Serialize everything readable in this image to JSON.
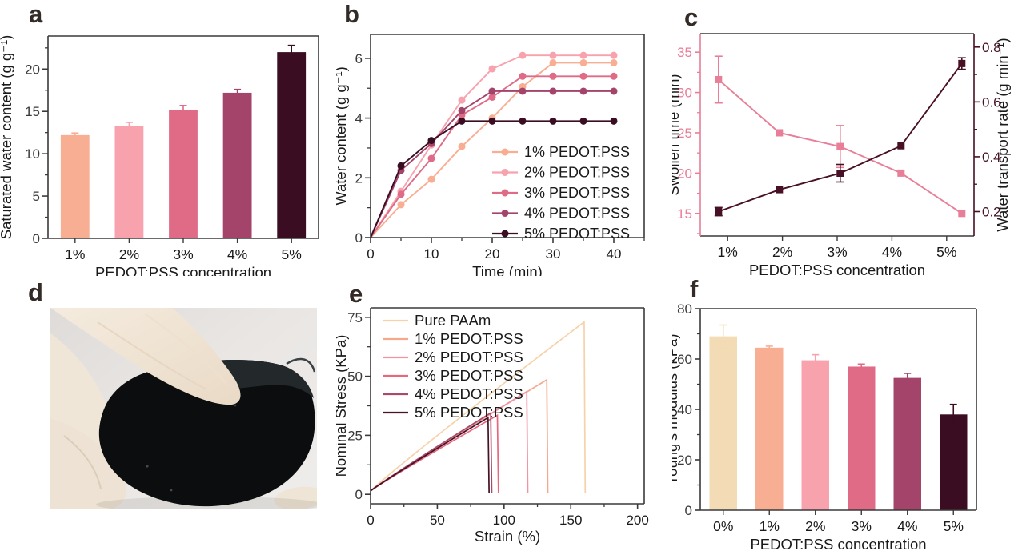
{
  "figure": {
    "background": "#ffffff",
    "panels": [
      {
        "id": "a",
        "label": "a"
      },
      {
        "id": "b",
        "label": "b"
      },
      {
        "id": "c",
        "label": "c"
      },
      {
        "id": "d",
        "label": "d"
      },
      {
        "id": "e",
        "label": "e"
      },
      {
        "id": "f",
        "label": "f"
      }
    ]
  },
  "photo": {
    "alt": "White-gloved hand holding and bending a flexible black PEDOT:PSS hydrogel disc"
  },
  "chart_data": [
    {
      "panel": "a",
      "type": "bar",
      "categories": [
        "1%",
        "2%",
        "3%",
        "4%",
        "5%"
      ],
      "values": [
        12.2,
        13.3,
        15.2,
        17.2,
        22.0
      ],
      "errors": [
        0.25,
        0.4,
        0.5,
        0.4,
        0.8
      ],
      "bar_colors": [
        "#F8AE93",
        "#F8A2AE",
        "#DF6B87",
        "#A4446A",
        "#3A0D22"
      ],
      "xlabel": "PEDOT:PSS concentration",
      "ylabel": "Saturated water content (g g⁻¹)",
      "ylim": [
        0,
        23.9
      ],
      "yticks": [
        0,
        5,
        10,
        15,
        20
      ],
      "grid": false
    },
    {
      "panel": "b",
      "type": "line",
      "x": [
        0,
        5,
        10,
        15,
        20,
        25,
        30,
        35,
        40
      ],
      "series": [
        {
          "name": "1% PEDOT:PSS",
          "color": "#F8AE93",
          "values": [
            0,
            1.1,
            1.95,
            3.05,
            4.0,
            5.05,
            5.85,
            5.85,
            5.85
          ]
        },
        {
          "name": "2% PEDOT:PSS",
          "color": "#F8A2AE",
          "values": [
            0,
            1.55,
            3.1,
            4.6,
            5.65,
            6.1,
            6.1,
            6.1,
            6.1
          ]
        },
        {
          "name": "3% PEDOT:PSS",
          "color": "#DF6B87",
          "values": [
            0,
            1.45,
            2.65,
            4.1,
            4.7,
            5.4,
            5.4,
            5.4,
            5.4
          ]
        },
        {
          "name": "4% PEDOT:PSS",
          "color": "#A4446A",
          "values": [
            0,
            2.25,
            3.15,
            4.25,
            4.9,
            4.9,
            4.9,
            4.9,
            4.9
          ]
        },
        {
          "name": "5% PEDOT:PSS",
          "color": "#3A0D22",
          "values": [
            0,
            2.4,
            3.25,
            3.9,
            3.9,
            3.9,
            3.9,
            3.9,
            3.9
          ]
        }
      ],
      "xlabel": "Time (min)",
      "ylabel": "Water content (g g⁻¹)",
      "xlim": [
        0,
        45
      ],
      "ylim": [
        0,
        6.8
      ],
      "xticks": [
        0,
        10,
        20,
        30,
        40
      ],
      "yticks": [
        0,
        2,
        4,
        6
      ],
      "legend_position": "lower-right",
      "markers": true,
      "grid": false
    },
    {
      "panel": "c",
      "type": "dual-line",
      "categories": [
        "1%",
        "2%",
        "3%",
        "4%",
        "5%"
      ],
      "left": {
        "label": "Swollen time (min)",
        "color": "#E87E97",
        "values": [
          31.6,
          25.0,
          23.3,
          20.0,
          15.0
        ],
        "errors": [
          2.9,
          0,
          2.6,
          0,
          0
        ],
        "ticks": [
          15,
          20,
          25,
          30,
          35
        ],
        "lim": [
          12.2,
          37.3
        ]
      },
      "right": {
        "label": "Water transport rate (g min⁻¹)",
        "color": "#471024",
        "values": [
          0.2,
          0.28,
          0.34,
          0.44,
          0.74
        ],
        "errors": [
          0.015,
          0,
          0.032,
          0,
          0.021
        ],
        "ticks": [
          0.2,
          0.4,
          0.6,
          0.8
        ],
        "lim": [
          0.111,
          0.849
        ]
      },
      "xlabel": "PEDOT:PSS concentration",
      "xlim": [
        0.7,
        5.2
      ],
      "marker": "square",
      "grid": false
    },
    {
      "panel": "e",
      "type": "stress-strain",
      "series": [
        {
          "name": "Pure PAAm",
          "color": "#F7D2A9",
          "fracture_strain": 160,
          "fracture_stress": 73.0
        },
        {
          "name": "1% PEDOT:PSS",
          "color": "#F6A78D",
          "fracture_strain": 132,
          "fracture_stress": 48.5
        },
        {
          "name": "2% PEDOT:PSS",
          "color": "#F293A0",
          "fracture_strain": 117,
          "fracture_stress": 43.5
        },
        {
          "name": "3% PEDOT:PSS",
          "color": "#E7687E",
          "fracture_strain": 95,
          "fracture_stress": 33.5
        },
        {
          "name": "4% PEDOT:PSS",
          "color": "#A74B67",
          "fracture_strain": 90,
          "fracture_stress": 34.5
        },
        {
          "name": "5% PEDOT:PSS",
          "color": "#451226",
          "fracture_strain": 88,
          "fracture_stress": 32.5
        }
      ],
      "curve_shape": "approximately linear rise from ~1.5 KPa at 0% strain to the fracture point, then vertical drop to 0",
      "start_stress": 1.5,
      "xlabel": "Strain (%)",
      "ylabel": "Nominal Stress (KPa)",
      "xlim": [
        0,
        205
      ],
      "ylim": [
        -4,
        79
      ],
      "xticks": [
        0,
        50,
        100,
        150,
        200
      ],
      "yticks": [
        0,
        25,
        50,
        75
      ],
      "legend_position": "upper-left",
      "markers": false,
      "grid": false
    },
    {
      "panel": "f",
      "type": "bar",
      "categories": [
        "0%",
        "1%",
        "2%",
        "3%",
        "4%",
        "5%"
      ],
      "values": [
        69,
        64.5,
        59.5,
        57,
        52.5,
        38
      ],
      "errors": [
        4.5,
        0.6,
        2.2,
        1.0,
        1.8,
        4.0
      ],
      "bar_colors": [
        "#F3DBB5",
        "#F8AE93",
        "#F8A2AE",
        "#DF6B87",
        "#A4446A",
        "#3A0D22"
      ],
      "xlabel": "PEDOT:PSS concentration",
      "ylabel": "Young's modulus (kPa)",
      "ylim": [
        0,
        80
      ],
      "yticks": [
        0,
        20,
        40,
        60,
        80
      ],
      "grid": false
    }
  ]
}
